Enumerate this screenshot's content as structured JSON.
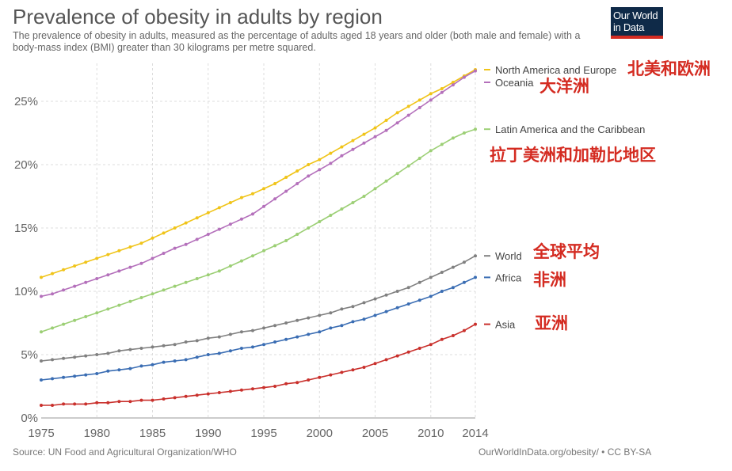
{
  "title": "Prevalence of obesity in adults by region",
  "subtitle": "The prevalence of obesity in adults, measured as the percentage of adults aged 18 years and older (both male and female) with a body-mass index (BMI) greater than 30 kilograms per metre squared.",
  "logo": {
    "line1": "Our World",
    "line2": "in Data"
  },
  "footer": {
    "source": "Source: UN Food and Agricultural Organization/WHO",
    "credit": "OurWorldInData.org/obesity/ • CC BY-SA"
  },
  "chart_data": {
    "type": "line",
    "x": [
      1975,
      1976,
      1977,
      1978,
      1979,
      1980,
      1981,
      1982,
      1983,
      1984,
      1985,
      1986,
      1987,
      1988,
      1989,
      1990,
      1991,
      1992,
      1993,
      1994,
      1995,
      1996,
      1997,
      1998,
      1999,
      2000,
      2001,
      2002,
      2003,
      2004,
      2005,
      2006,
      2007,
      2008,
      2009,
      2010,
      2011,
      2012,
      2013,
      2014
    ],
    "ylim": [
      0,
      28
    ],
    "xlim": [
      1975,
      2014
    ],
    "yticks": [
      0,
      5,
      10,
      15,
      20,
      25
    ],
    "ytick_labels": [
      "0%",
      "5%",
      "10%",
      "15%",
      "20%",
      "25%"
    ],
    "xticks": [
      1975,
      1980,
      1985,
      1990,
      1995,
      2000,
      2005,
      2010,
      2014
    ],
    "xtick_labels": [
      "1975",
      "1980",
      "1985",
      "1990",
      "1995",
      "2000",
      "2005",
      "2010",
      "2014"
    ],
    "grid": "dashed",
    "legend": "right",
    "series": [
      {
        "name": "North America and Europe",
        "label_cn": "北美和欧洲",
        "color": "#f0c419",
        "values": [
          11.1,
          11.4,
          11.7,
          12.0,
          12.3,
          12.6,
          12.9,
          13.2,
          13.5,
          13.8,
          14.2,
          14.6,
          15.0,
          15.4,
          15.8,
          16.2,
          16.6,
          17.0,
          17.4,
          17.7,
          18.1,
          18.5,
          19.0,
          19.5,
          20.0,
          20.4,
          20.9,
          21.4,
          21.9,
          22.4,
          22.9,
          23.5,
          24.1,
          24.6,
          25.1,
          25.6,
          26.0,
          26.5,
          27.0,
          27.5
        ]
      },
      {
        "name": "Oceania",
        "label_cn": "大洋洲",
        "color": "#b470bb",
        "values": [
          9.6,
          9.8,
          10.1,
          10.4,
          10.7,
          11.0,
          11.3,
          11.6,
          11.9,
          12.2,
          12.6,
          13.0,
          13.4,
          13.7,
          14.1,
          14.5,
          14.9,
          15.3,
          15.7,
          16.1,
          16.7,
          17.3,
          17.9,
          18.5,
          19.1,
          19.6,
          20.1,
          20.7,
          21.2,
          21.7,
          22.2,
          22.7,
          23.3,
          23.9,
          24.5,
          25.1,
          25.7,
          26.3,
          26.9,
          27.4
        ]
      },
      {
        "name": "Latin America and the Caribbean",
        "label_cn": "拉丁美洲和加勒比地区",
        "color": "#9ccf75",
        "values": [
          6.8,
          7.1,
          7.4,
          7.7,
          8.0,
          8.3,
          8.6,
          8.9,
          9.2,
          9.5,
          9.8,
          10.1,
          10.4,
          10.7,
          11.0,
          11.3,
          11.6,
          12.0,
          12.4,
          12.8,
          13.2,
          13.6,
          14.0,
          14.5,
          15.0,
          15.5,
          16.0,
          16.5,
          17.0,
          17.5,
          18.1,
          18.7,
          19.3,
          19.9,
          20.5,
          21.1,
          21.6,
          22.1,
          22.5,
          22.8
        ]
      },
      {
        "name": "World",
        "label_cn": "全球平均",
        "color": "#808080",
        "values": [
          4.5,
          4.6,
          4.7,
          4.8,
          4.9,
          5.0,
          5.1,
          5.3,
          5.4,
          5.5,
          5.6,
          5.7,
          5.8,
          6.0,
          6.1,
          6.3,
          6.4,
          6.6,
          6.8,
          6.9,
          7.1,
          7.3,
          7.5,
          7.7,
          7.9,
          8.1,
          8.3,
          8.6,
          8.8,
          9.1,
          9.4,
          9.7,
          10.0,
          10.3,
          10.7,
          11.1,
          11.5,
          11.9,
          12.3,
          12.8
        ]
      },
      {
        "name": "Africa",
        "label_cn": "非洲",
        "color": "#3a6db3",
        "values": [
          3.0,
          3.1,
          3.2,
          3.3,
          3.4,
          3.5,
          3.7,
          3.8,
          3.9,
          4.1,
          4.2,
          4.4,
          4.5,
          4.6,
          4.8,
          5.0,
          5.1,
          5.3,
          5.5,
          5.6,
          5.8,
          6.0,
          6.2,
          6.4,
          6.6,
          6.8,
          7.1,
          7.3,
          7.6,
          7.8,
          8.1,
          8.4,
          8.7,
          9.0,
          9.3,
          9.6,
          10.0,
          10.3,
          10.7,
          11.1
        ]
      },
      {
        "name": "Asia",
        "label_cn": "亚洲",
        "color": "#c9302c",
        "values": [
          1.0,
          1.0,
          1.1,
          1.1,
          1.1,
          1.2,
          1.2,
          1.3,
          1.3,
          1.4,
          1.4,
          1.5,
          1.6,
          1.7,
          1.8,
          1.9,
          2.0,
          2.1,
          2.2,
          2.3,
          2.4,
          2.5,
          2.7,
          2.8,
          3.0,
          3.2,
          3.4,
          3.6,
          3.8,
          4.0,
          4.3,
          4.6,
          4.9,
          5.2,
          5.5,
          5.8,
          6.2,
          6.5,
          6.9,
          7.4
        ]
      }
    ]
  }
}
